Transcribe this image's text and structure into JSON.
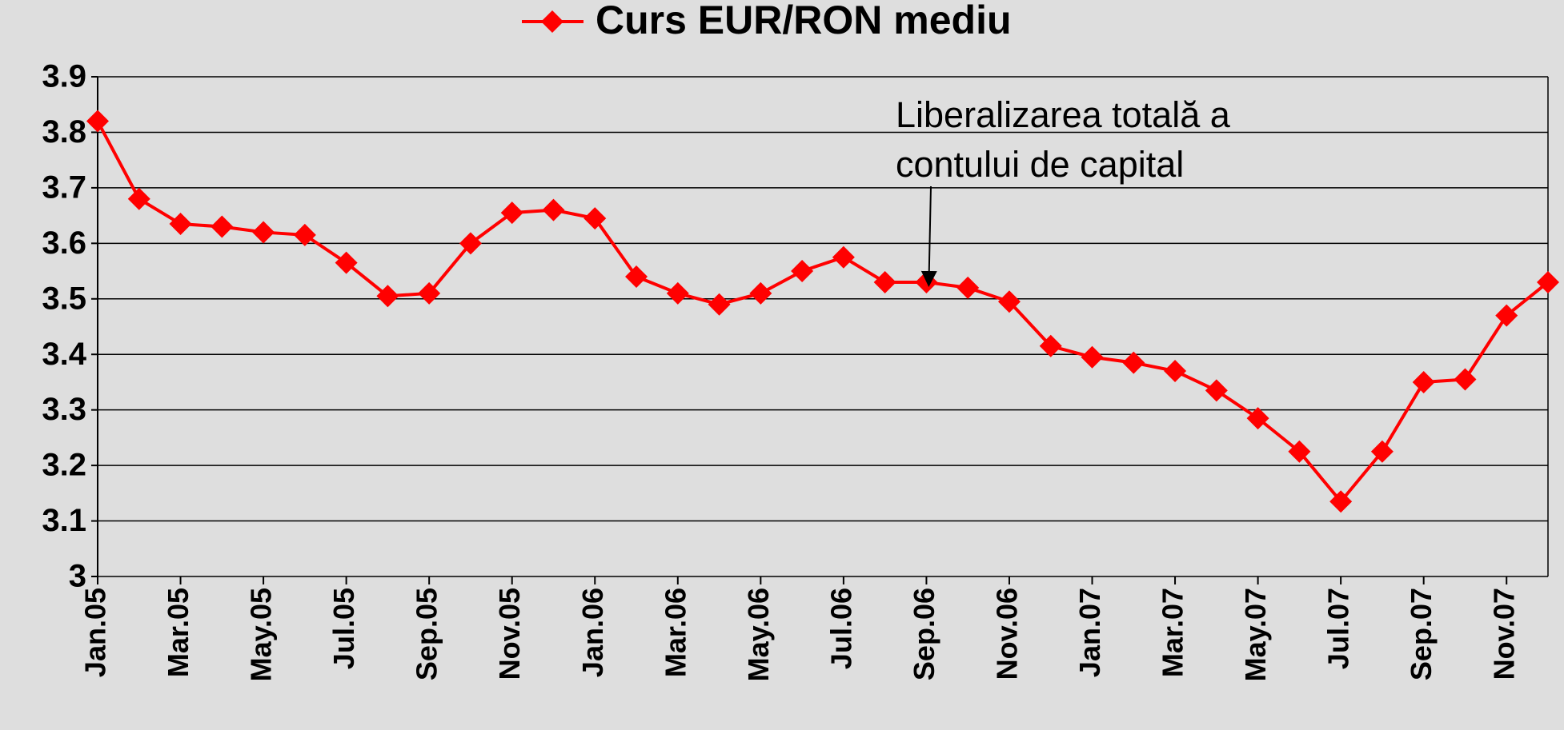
{
  "chart_data": {
    "type": "line",
    "categories": [
      "Jan.05",
      null,
      "Mar.05",
      null,
      "May.05",
      null,
      "Jul.05",
      null,
      "Sep.05",
      null,
      "Nov.05",
      null,
      "Jan.06",
      null,
      "Mar.06",
      null,
      "May.06",
      null,
      "Jul.06",
      null,
      "Sep.06",
      null,
      "Nov.06",
      null,
      "Jan.07",
      null,
      "Mar.07",
      null,
      "May.07",
      null,
      "Jul.07",
      null,
      "Sep.07",
      null,
      "Nov.07",
      null
    ],
    "series": [
      {
        "name": "Curs EUR/RON mediu",
        "color": "#ff0000",
        "values": [
          3.82,
          3.68,
          3.635,
          3.63,
          3.62,
          3.615,
          3.565,
          3.505,
          3.51,
          3.6,
          3.655,
          3.66,
          3.645,
          3.54,
          3.51,
          3.49,
          3.51,
          3.55,
          3.575,
          3.53,
          3.53,
          3.52,
          3.495,
          3.415,
          3.395,
          3.385,
          3.37,
          3.335,
          3.285,
          3.225,
          3.135,
          3.225,
          3.35,
          3.355,
          3.47,
          3.53
        ]
      }
    ],
    "ylim": [
      3,
      3.9
    ],
    "yticks": [
      3,
      3.1,
      3.2,
      3.3,
      3.4,
      3.5,
      3.6,
      3.7,
      3.8,
      3.9
    ],
    "grid": true,
    "legend": "top",
    "annotation": {
      "lines": [
        "Liberalizarea totală a",
        "contului de capital"
      ],
      "category_index": 20
    }
  }
}
